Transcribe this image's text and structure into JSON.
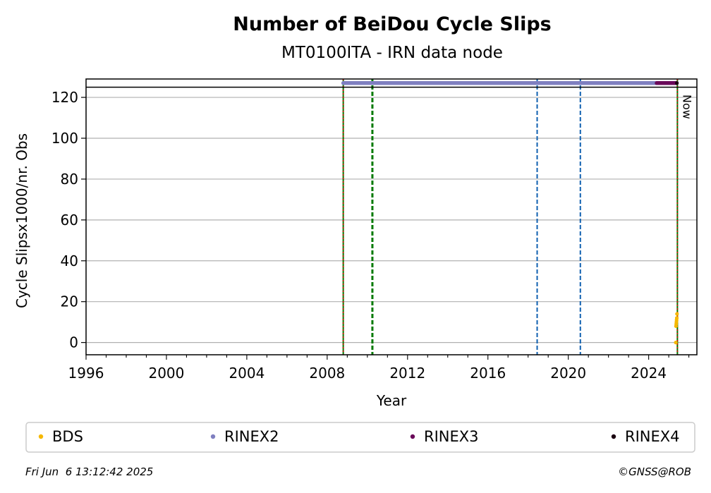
{
  "chart_data": {
    "type": "scatter",
    "title": "Number of BeiDou Cycle Slips",
    "subtitle": "MT0100ITA - IRN data node",
    "xlabel": "Year",
    "ylabel": "Cycle Slipsx1000/nr. Obs",
    "xlim": [
      1996,
      2026.4
    ],
    "ylim": [
      -6,
      129
    ],
    "xticks": [
      1996,
      2000,
      2004,
      2008,
      2012,
      2016,
      2020,
      2024
    ],
    "yticks": [
      0,
      20,
      40,
      60,
      80,
      100,
      120
    ],
    "grid": "horizontal",
    "legend_position": "bottom",
    "series": [
      {
        "name": "BDS",
        "color": "#f5b800",
        "points": [
          [
            2025.35,
            0
          ],
          [
            2025.37,
            9
          ],
          [
            2025.38,
            10
          ],
          [
            2025.39,
            11
          ],
          [
            2025.4,
            12
          ],
          [
            2025.41,
            14
          ],
          [
            2025.36,
            8
          ]
        ]
      },
      {
        "name": "RINEX2",
        "color": "#7f7fc0",
        "x_range": [
          2008.8,
          2024.4
        ],
        "y": 127
      },
      {
        "name": "RINEX3",
        "color": "#6a0a5a",
        "x_range": [
          2024.4,
          2025.4
        ],
        "y": 127
      },
      {
        "name": "RINEX4",
        "color": "#1a0010",
        "points": [
          [
            2025.4,
            127
          ]
        ]
      }
    ],
    "vertical_lines": [
      {
        "x": 2008.8,
        "color": "#007a00",
        "style": "solid",
        "width": 2
      },
      {
        "x": 2008.8,
        "color": "#e00000",
        "style": "dotted",
        "width": 1.5
      },
      {
        "x": 2010.25,
        "color": "#007a00",
        "style": "dashed",
        "width": 3
      },
      {
        "x": 2018.45,
        "color": "#1060b0",
        "style": "dashed",
        "width": 2
      },
      {
        "x": 2020.6,
        "color": "#1060b0",
        "style": "dashed",
        "width": 2
      },
      {
        "x": 2025.43,
        "color": "#007a00",
        "style": "solid",
        "width": 2
      },
      {
        "x": 2025.43,
        "color": "#e00000",
        "style": "dotted",
        "width": 1.5
      }
    ],
    "horizontal_line": {
      "y": 125,
      "color": "#000000"
    },
    "annotation": "Now"
  },
  "footer": {
    "timestamp": "Fri Jun  6 13:12:42 2025",
    "copyright": "©GNSS@ROB"
  }
}
